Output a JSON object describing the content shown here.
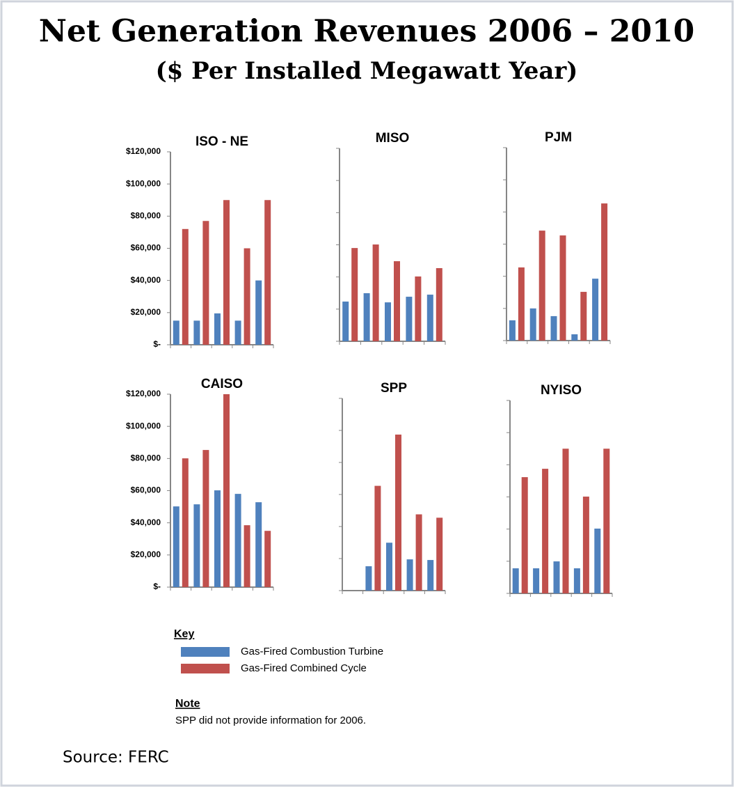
{
  "title": "Net Generation Revenues 2006 – 2010",
  "subtitle": "($ Per Installed Megawatt Year)",
  "key": {
    "title": "Key",
    "series": [
      {
        "name": "Gas-Fired Combustion Turbine",
        "color": "#4f81bd"
      },
      {
        "name": "Gas-Fired Combined Cycle",
        "color": "#c0504d"
      }
    ]
  },
  "note": {
    "title": "Note",
    "text": "SPP did not provide information for 2006."
  },
  "source": "Source: FERC",
  "chart_data": [
    {
      "type": "bar",
      "title": "ISO - NE",
      "categories": [
        null,
        null,
        null,
        null,
        null
      ],
      "series": [
        {
          "values": [
            15000,
            15000,
            19500,
            15000,
            40000
          ]
        },
        {
          "values": [
            72000,
            77000,
            90000,
            60000,
            90000
          ]
        }
      ],
      "ylim": [
        0,
        120000
      ],
      "show_ytick_labels": true,
      "yticks": [
        {
          "value": 0,
          "label": "$-"
        },
        {
          "value": 20000,
          "label": "$20,000"
        },
        {
          "value": 40000,
          "label": "$40,000"
        },
        {
          "value": 60000,
          "label": "$60,000"
        },
        {
          "value": 80000,
          "label": "$80,000"
        },
        {
          "value": 100000,
          "label": "$100,000"
        },
        {
          "value": 120000,
          "label": "$120,000"
        }
      ]
    },
    {
      "type": "bar",
      "title": "MISO",
      "categories": [
        null,
        null,
        null,
        null,
        null
      ],
      "series": [
        {
          "values": [
            24700,
            29900,
            24200,
            27700,
            29000
          ]
        },
        {
          "values": [
            58000,
            60200,
            49800,
            40300,
            45500
          ]
        }
      ],
      "ylim": [
        0,
        120000
      ],
      "show_ytick_labels": false,
      "yticks": [
        0,
        20000,
        40000,
        60000,
        80000,
        100000,
        120000
      ]
    },
    {
      "type": "bar",
      "title": "PJM",
      "categories": [
        null,
        null,
        null,
        null,
        null
      ],
      "series": [
        {
          "values": [
            12600,
            20000,
            15200,
            3900,
            38500
          ]
        },
        {
          "values": [
            45500,
            68400,
            65400,
            30300,
            85300
          ]
        }
      ],
      "ylim": [
        0,
        120000
      ],
      "show_ytick_labels": false,
      "yticks": [
        0,
        20000,
        40000,
        60000,
        80000,
        100000,
        120000
      ]
    },
    {
      "type": "bar",
      "title": "CAISO",
      "categories": [
        null,
        null,
        null,
        null,
        null
      ],
      "series": [
        {
          "values": [
            50200,
            51500,
            60200,
            58000,
            52800
          ]
        },
        {
          "values": [
            80100,
            85300,
            120000,
            38500,
            35000
          ]
        }
      ],
      "ylim": [
        0,
        120000
      ],
      "show_ytick_labels": true,
      "yticks": [
        {
          "value": 0,
          "label": "$-"
        },
        {
          "value": 20000,
          "label": "$20,000"
        },
        {
          "value": 40000,
          "label": "$40,000"
        },
        {
          "value": 60000,
          "label": "$60,000"
        },
        {
          "value": 80000,
          "label": "$80,000"
        },
        {
          "value": 100000,
          "label": "$100,000"
        },
        {
          "value": 120000,
          "label": "$120,000"
        }
      ]
    },
    {
      "type": "bar",
      "title": "SPP",
      "categories": [
        null,
        null,
        null,
        null,
        null
      ],
      "series": [
        {
          "values": [
            null,
            15200,
            29900,
            19500,
            19100
          ]
        },
        {
          "values": [
            null,
            65400,
            97400,
            47600,
            45500
          ]
        }
      ],
      "ylim": [
        0,
        120000
      ],
      "show_ytick_labels": false,
      "yticks": [
        0,
        20000,
        40000,
        60000,
        80000,
        100000,
        120000
      ]
    },
    {
      "type": "bar",
      "title": "NYISO",
      "categories": [
        null,
        null,
        null,
        null,
        null
      ],
      "series": [
        {
          "values": [
            15600,
            15600,
            19900,
            15600,
            40300
          ]
        },
        {
          "values": [
            72300,
            77500,
            90000,
            60200,
            90000
          ]
        }
      ],
      "ylim": [
        0,
        120000
      ],
      "show_ytick_labels": false,
      "yticks": [
        0,
        20000,
        40000,
        60000,
        80000,
        100000,
        120000
      ]
    }
  ]
}
